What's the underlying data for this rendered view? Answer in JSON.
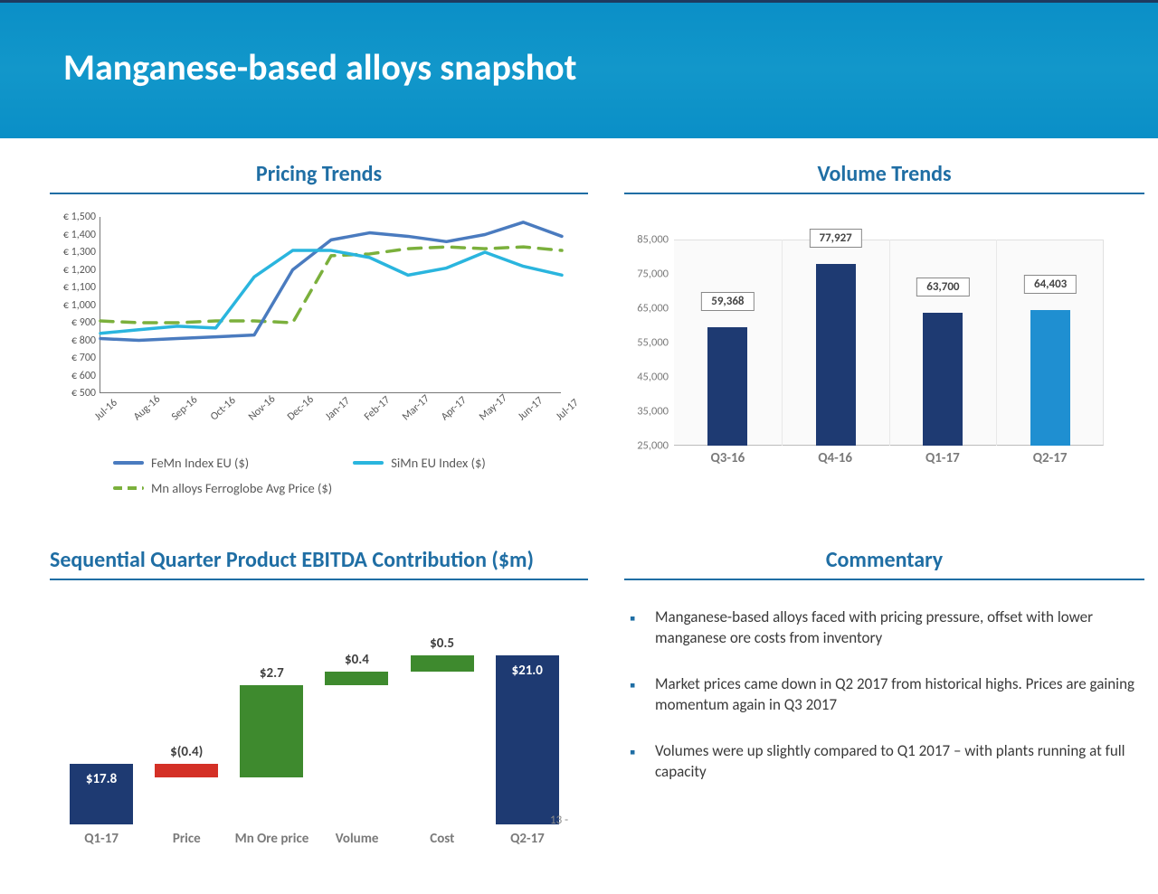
{
  "header": {
    "title": "Manganese-based alloys snapshot"
  },
  "page_number": "13 -",
  "colors": {
    "accent": "#1f6ea4",
    "navy": "#1e3a72",
    "blue": "#1f8fd1",
    "green": "#3e8a2e",
    "red": "#d43026",
    "femn": "#4a7bbf",
    "simn": "#2ab5de",
    "avg": "#7bb03c"
  },
  "pricing": {
    "title": "Pricing Trends",
    "ymin": 500,
    "ymax": 1500,
    "ystep": 100,
    "xlabels": [
      "Jul-16",
      "Aug-16",
      "Sep-16",
      "Oct-16",
      "Nov-16",
      "Dec-16",
      "Jan-17",
      "Feb-17",
      "Mar-17",
      "Apr-17",
      "May-17",
      "Jun-17",
      "Jul-17"
    ],
    "series": {
      "femn": {
        "label": "FeMn Index EU ($)",
        "values": [
          810,
          800,
          810,
          820,
          830,
          1200,
          1370,
          1410,
          1390,
          1360,
          1400,
          1470,
          1390
        ]
      },
      "simn": {
        "label": "SiMn EU Index ($)",
        "values": [
          840,
          860,
          880,
          870,
          1160,
          1310,
          1310,
          1270,
          1170,
          1210,
          1300,
          1220,
          1170
        ]
      },
      "avg": {
        "label": "Mn alloys Ferroglobe Avg Price ($)",
        "values": [
          910,
          900,
          900,
          910,
          910,
          900,
          1280,
          1290,
          1320,
          1330,
          1320,
          1330,
          1310
        ]
      }
    }
  },
  "volume": {
    "title": "Volume Trends",
    "ymin": 25000,
    "ymax": 85000,
    "ystep": 10000,
    "categories": [
      "Q3-16",
      "Q4-16",
      "Q1-17",
      "Q2-17"
    ],
    "values": [
      59368,
      77927,
      63700,
      64403
    ],
    "bar_colors": [
      "#1e3a72",
      "#1e3a72",
      "#1e3a72",
      "#1f8fd1"
    ],
    "value_labels": [
      "59,368",
      "77,927",
      "63,700",
      "64,403"
    ]
  },
  "waterfall": {
    "title": "Sequential Quarter Product EBITDA Contribution ($m)",
    "baseline_min": 16,
    "baseline_max": 22,
    "items": [
      {
        "label": "Q1-17",
        "text": "$17.8",
        "start": 16.0,
        "end": 17.8,
        "color": "#1e3a72",
        "txt_color": "#ffffff",
        "txt_inside": true
      },
      {
        "label": "Price",
        "text": "$(0.4)",
        "start": 17.4,
        "end": 17.8,
        "color": "#d43026",
        "txt_color": "#404040",
        "txt_inside": false
      },
      {
        "label": "Mn Ore price",
        "text": "$2.7",
        "start": 17.4,
        "end": 20.1,
        "color": "#3e8a2e",
        "txt_color": "#404040",
        "txt_inside": false
      },
      {
        "label": "Volume",
        "text": "$0.4",
        "start": 20.1,
        "end": 20.5,
        "color": "#3e8a2e",
        "txt_color": "#404040",
        "txt_inside": false
      },
      {
        "label": "Cost",
        "text": "$0.5",
        "start": 20.5,
        "end": 21.0,
        "color": "#3e8a2e",
        "txt_color": "#404040",
        "txt_inside": false
      },
      {
        "label": "Q2-17",
        "text": "$21.0",
        "start": 16.0,
        "end": 21.0,
        "color": "#1e3a72",
        "txt_color": "#ffffff",
        "txt_inside": true
      }
    ]
  },
  "commentary": {
    "title": "Commentary",
    "bullets": [
      "Manganese-based alloys faced with pricing pressure, offset with lower manganese ore costs from inventory",
      "Market prices came down in Q2 2017 from historical highs. Prices are gaining momentum again in Q3 2017",
      "Volumes were up slightly compared to Q1 2017 – with plants running at full capacity"
    ]
  }
}
